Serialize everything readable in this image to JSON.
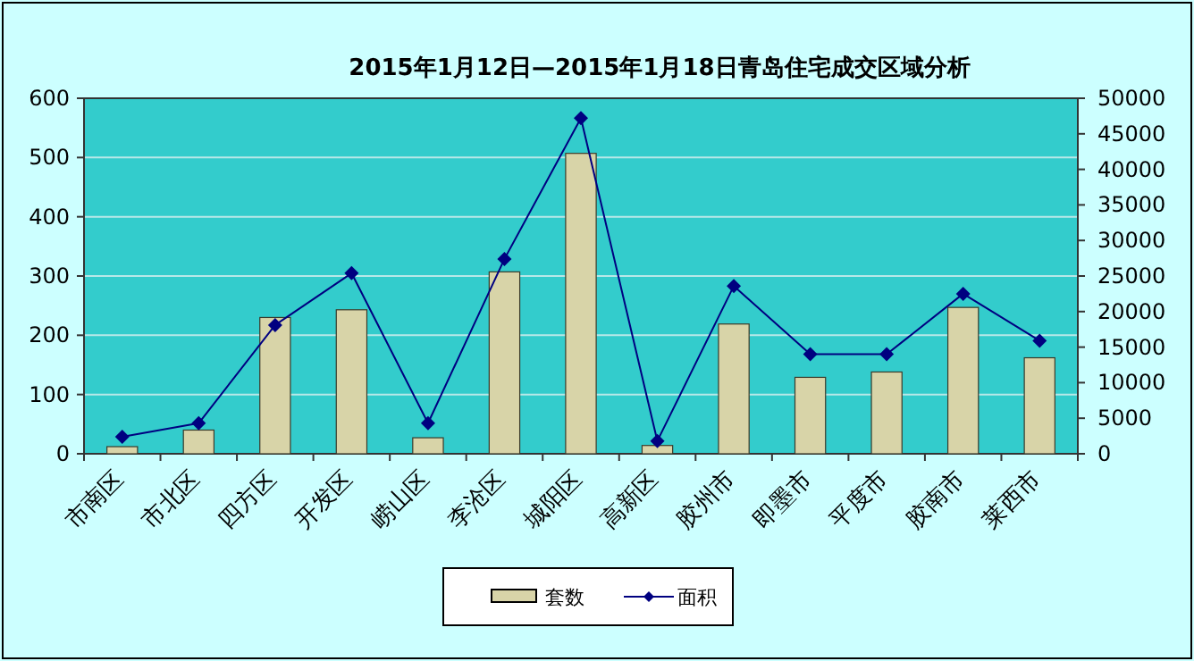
{
  "chart_data": {
    "type": "bar",
    "title": "2015年1月12日—2015年1月18日青岛住宅成交区域分析",
    "categories": [
      "市南区",
      "市北区",
      "四方区",
      "开发区",
      "崂山区",
      "李沧区",
      "城阳区",
      "高新区",
      "胶州市",
      "即墨市",
      "平度市",
      "胶南市",
      "莱西市"
    ],
    "series": [
      {
        "name": "套数",
        "color": "#d8d4a8",
        "values": [
          12,
          40,
          230,
          243,
          27,
          307,
          507,
          14,
          219,
          129,
          138,
          247,
          162
        ]
      },
      {
        "name": "面积",
        "type": "line",
        "axis": "y2",
        "color": "#000080",
        "marker": "diamond",
        "values": [
          2400,
          4300,
          18100,
          25400,
          4300,
          27400,
          47200,
          1800,
          23600,
          14000,
          14000,
          22500,
          15900
        ]
      }
    ],
    "ylim": [
      0,
      600
    ],
    "yticks": [
      0,
      100,
      200,
      300,
      400,
      500,
      600
    ],
    "y2lim": [
      0,
      50000
    ],
    "y2ticks": [
      0,
      5000,
      10000,
      15000,
      20000,
      25000,
      30000,
      35000,
      40000,
      45000,
      50000
    ],
    "grid": "y",
    "legend": "bottom"
  }
}
